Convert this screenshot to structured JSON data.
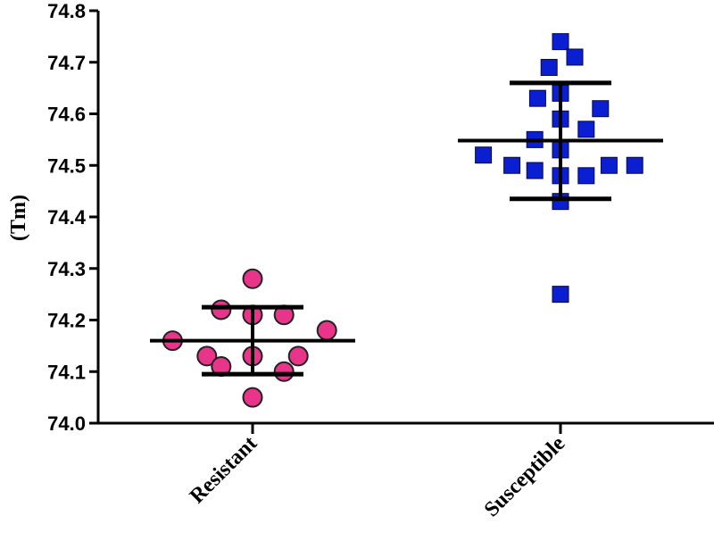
{
  "chart_data": {
    "type": "scatter",
    "title": "",
    "xlabel": "",
    "ylabel": "(Tm)",
    "ylim": [
      74.0,
      74.8
    ],
    "yticks": [
      "74.0",
      "74.1",
      "74.2",
      "74.3",
      "74.4",
      "74.5",
      "74.6",
      "74.7",
      "74.8"
    ],
    "grid": false,
    "categories": [
      "Resistant",
      "Susceptible"
    ],
    "series": [
      {
        "category": "Resistant",
        "marker": "circle",
        "color": "#E8358A",
        "values": [
          74.28,
          74.22,
          74.21,
          74.21,
          74.18,
          74.16,
          74.13,
          74.13,
          74.13,
          74.11,
          74.1,
          74.05
        ],
        "offsets": [
          0,
          -1.1,
          0,
          1.1,
          2.6,
          -2.8,
          -1.6,
          0,
          1.6,
          -1.1,
          1.1,
          0
        ],
        "mean": 74.16,
        "err_low": 74.095,
        "err_high": 74.225
      },
      {
        "category": "Susceptible",
        "marker": "square",
        "color": "#0A1ED2",
        "values": [
          74.74,
          74.71,
          74.69,
          74.64,
          74.63,
          74.61,
          74.59,
          74.57,
          74.55,
          74.53,
          74.52,
          74.5,
          74.5,
          74.5,
          74.49,
          74.48,
          74.48,
          74.43,
          74.25
        ],
        "offsets": [
          0,
          0.5,
          -0.4,
          0,
          -0.8,
          1.4,
          0,
          0.9,
          -0.9,
          0,
          -2.7,
          -1.7,
          1.7,
          2.6,
          -0.9,
          0,
          0.9,
          0,
          0
        ],
        "mean": 74.548,
        "err_low": 74.435,
        "err_high": 74.66
      }
    ]
  }
}
